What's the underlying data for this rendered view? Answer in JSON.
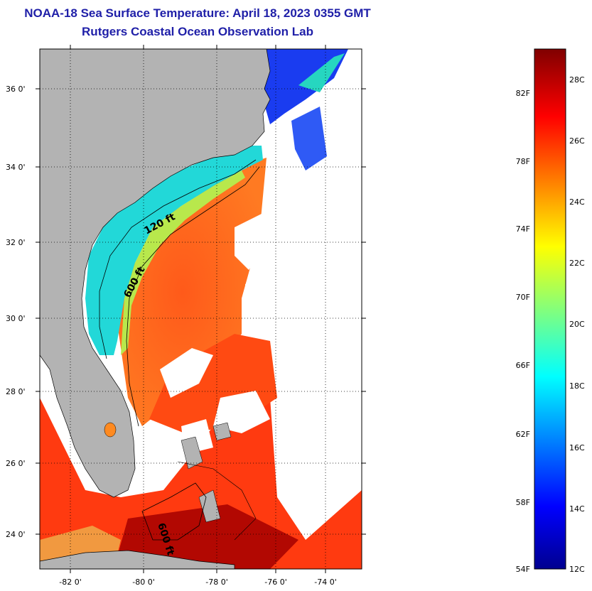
{
  "title": {
    "line1": "NOAA-18 Sea Surface Temperature:  April 18, 2023 0355 GMT",
    "line2": "Rutgers Coastal Ocean Observation Lab"
  },
  "map": {
    "lat_ticks": [
      "24 0'",
      "26 0'",
      "28 0'",
      "30 0'",
      "32 0'",
      "34 0'",
      "36 0'"
    ],
    "lon_ticks": [
      "-82 0'",
      "-80 0'",
      "-78 0'",
      "-76 0'",
      "-74 0'"
    ],
    "contour_labels": [
      "120 ft",
      "600 ft",
      "600 ft"
    ],
    "land_color": "#b3b3b3",
    "no_data_color": "#ffffff"
  },
  "colorbar": {
    "fahrenheit_labels": [
      "54F",
      "58F",
      "62F",
      "66F",
      "70F",
      "74F",
      "78F",
      "82F"
    ],
    "celsius_labels": [
      "12C",
      "14C",
      "16C",
      "18C",
      "20C",
      "22C",
      "24C",
      "26C",
      "28C"
    ],
    "min_color": "#00008f",
    "max_color": "#800000"
  }
}
